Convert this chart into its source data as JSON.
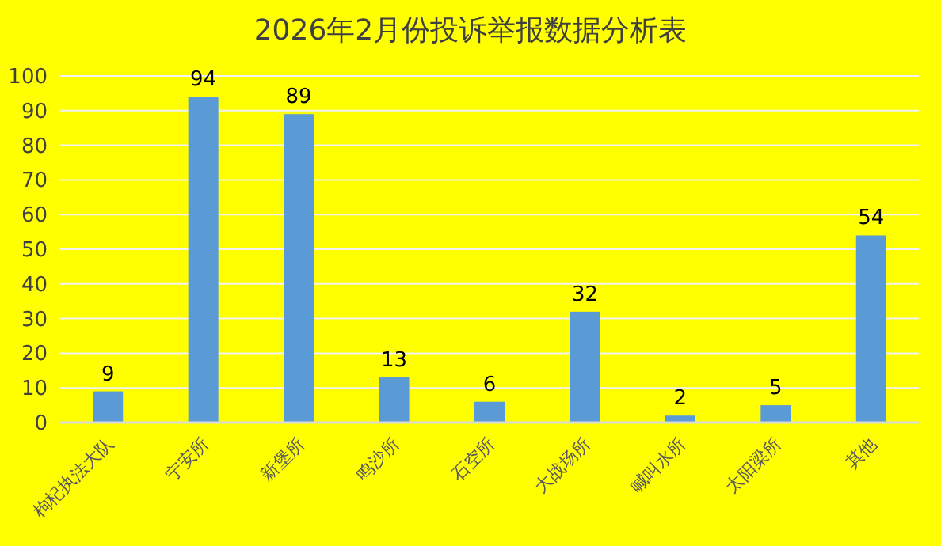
{
  "chart_data": {
    "type": "bar",
    "title": "2026年2月份投诉举报数据分析表",
    "categories": [
      "枸杞执法大队",
      "宁安所",
      "新堡所",
      "鸣沙所",
      "石空所",
      "大战场所",
      "喊叫水所",
      "太阳梁所",
      "其他"
    ],
    "values": [
      9,
      94,
      89,
      13,
      6,
      32,
      2,
      5,
      54
    ],
    "color": "#5b9bd5",
    "ylim": [
      0,
      100
    ],
    "yticks": [
      0,
      10,
      20,
      30,
      40,
      50,
      60,
      70,
      80,
      90,
      100
    ],
    "grid": "y",
    "data_labels": true
  }
}
